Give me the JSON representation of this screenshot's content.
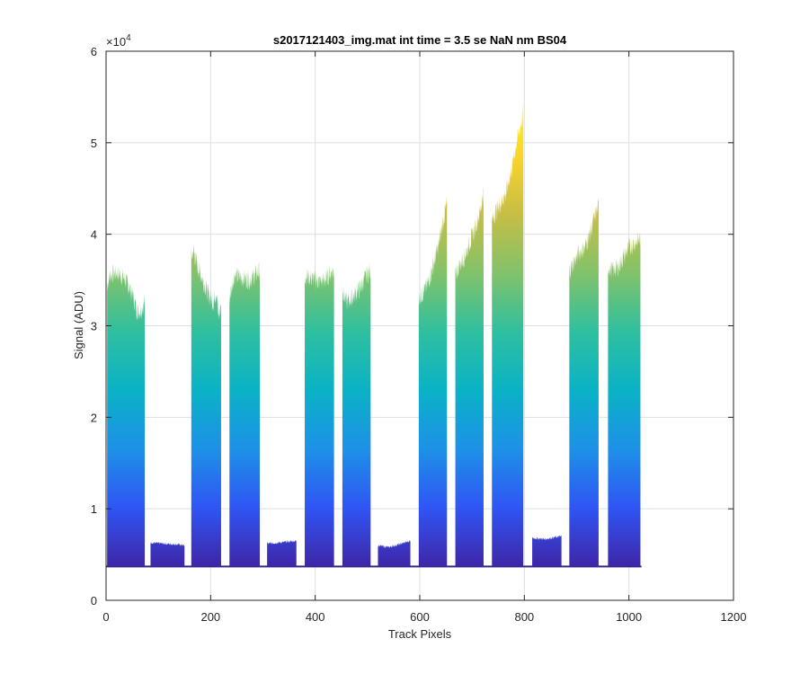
{
  "chart_data": {
    "type": "area",
    "title": "s2017121403_img.mat int time = 3.5 se  NaN nm BS04",
    "xlabel": "Track Pixels",
    "ylabel": "Signal (ADU)",
    "xlim": [
      0,
      1200
    ],
    "ylim": [
      0,
      60000
    ],
    "x_ticks": [
      "0",
      "200",
      "400",
      "600",
      "800",
      "1000",
      "1200"
    ],
    "y_ticks": [
      "0",
      "1",
      "2",
      "3",
      "4",
      "5",
      "6"
    ],
    "y_exponent_base": "×10",
    "y_exponent_power": "4",
    "grid": true,
    "colormap": [
      "#3e26a8",
      "#2f55f4",
      "#1d91e7",
      "#0ab2c6",
      "#2fbf9f",
      "#82c26a",
      "#c6be45",
      "#fbd42a",
      "#f9fb15"
    ],
    "baseline": 3700,
    "segments": [
      {
        "x_start": 2,
        "x_end": 74,
        "points": [
          [
            2,
            34500
          ],
          [
            8,
            35500
          ],
          [
            20,
            35800
          ],
          [
            35,
            35200
          ],
          [
            50,
            33500
          ],
          [
            60,
            31500
          ],
          [
            68,
            31800
          ],
          [
            74,
            32500
          ]
        ]
      },
      {
        "x_start": 85,
        "x_end": 150,
        "points": [
          [
            85,
            6300
          ],
          [
            110,
            6200
          ],
          [
            140,
            6100
          ],
          [
            150,
            6000
          ]
        ]
      },
      {
        "x_start": 163,
        "x_end": 220,
        "points": [
          [
            163,
            37500
          ],
          [
            167,
            38200
          ],
          [
            175,
            36500
          ],
          [
            185,
            35000
          ],
          [
            195,
            33500
          ],
          [
            205,
            32500
          ],
          [
            212,
            34000
          ],
          [
            215,
            30500
          ],
          [
            220,
            32500
          ]
        ]
      },
      {
        "x_start": 236,
        "x_end": 294,
        "points": [
          [
            236,
            33000
          ],
          [
            245,
            35500
          ],
          [
            260,
            35200
          ],
          [
            275,
            35000
          ],
          [
            285,
            35500
          ],
          [
            294,
            36000
          ]
        ]
      },
      {
        "x_start": 308,
        "x_end": 364,
        "points": [
          [
            308,
            6200
          ],
          [
            330,
            6300
          ],
          [
            364,
            6500
          ]
        ]
      },
      {
        "x_start": 380,
        "x_end": 436,
        "points": [
          [
            380,
            35500
          ],
          [
            392,
            35200
          ],
          [
            410,
            34800
          ],
          [
            420,
            35000
          ],
          [
            430,
            35800
          ],
          [
            436,
            36000
          ]
        ]
      },
      {
        "x_start": 452,
        "x_end": 506,
        "points": [
          [
            452,
            34000
          ],
          [
            460,
            32500
          ],
          [
            470,
            33000
          ],
          [
            485,
            34000
          ],
          [
            498,
            35500
          ],
          [
            506,
            36000
          ]
        ]
      },
      {
        "x_start": 520,
        "x_end": 582,
        "points": [
          [
            520,
            6000
          ],
          [
            540,
            5800
          ],
          [
            560,
            6100
          ],
          [
            582,
            6500
          ]
        ]
      },
      {
        "x_start": 598,
        "x_end": 652,
        "points": [
          [
            598,
            33000
          ],
          [
            605,
            33500
          ],
          [
            615,
            34500
          ],
          [
            625,
            36500
          ],
          [
            635,
            38500
          ],
          [
            645,
            41500
          ],
          [
            652,
            43500
          ]
        ]
      },
      {
        "x_start": 668,
        "x_end": 722,
        "points": [
          [
            668,
            35500
          ],
          [
            675,
            36500
          ],
          [
            685,
            37500
          ],
          [
            695,
            39000
          ],
          [
            705,
            40500
          ],
          [
            715,
            42500
          ],
          [
            722,
            44500
          ]
        ]
      },
      {
        "x_start": 738,
        "x_end": 798,
        "points": [
          [
            738,
            41500
          ],
          [
            745,
            42500
          ],
          [
            755,
            43500
          ],
          [
            765,
            44500
          ],
          [
            775,
            47000
          ],
          [
            785,
            50000
          ],
          [
            795,
            52500
          ],
          [
            798,
            53500
          ]
        ]
      },
      {
        "x_start": 815,
        "x_end": 871,
        "points": [
          [
            815,
            6800
          ],
          [
            840,
            6700
          ],
          [
            871,
            7000
          ]
        ]
      },
      {
        "x_start": 886,
        "x_end": 942,
        "points": [
          [
            886,
            36000
          ],
          [
            895,
            37000
          ],
          [
            905,
            38000
          ],
          [
            915,
            38500
          ],
          [
            925,
            40000
          ],
          [
            935,
            42000
          ],
          [
            942,
            43000
          ]
        ]
      },
      {
        "x_start": 960,
        "x_end": 1022,
        "points": [
          [
            960,
            36500
          ],
          [
            970,
            36000
          ],
          [
            980,
            36500
          ],
          [
            990,
            37500
          ],
          [
            1000,
            38500
          ],
          [
            1010,
            39000
          ],
          [
            1022,
            39500
          ]
        ]
      }
    ]
  }
}
